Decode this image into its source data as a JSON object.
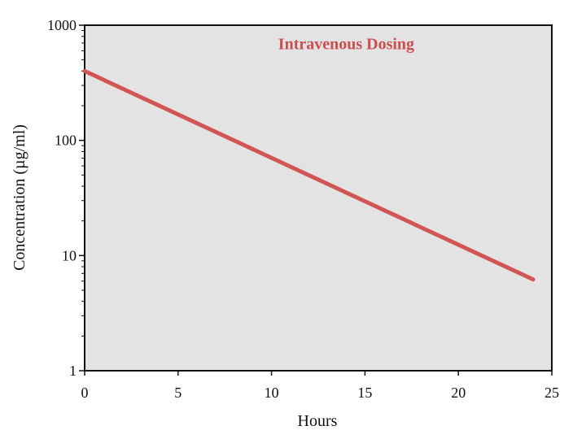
{
  "chart_data": {
    "type": "line",
    "xlabel": "Hours",
    "ylabel": "Concentration (µg/ml)",
    "xlim": [
      0,
      25
    ],
    "ylim": [
      1,
      1000
    ],
    "yscale": "log",
    "xticks": [
      0,
      5,
      10,
      15,
      20,
      25
    ],
    "yticks": [
      1,
      10,
      100,
      1000
    ],
    "xtick_labels": [
      "0",
      "5",
      "10",
      "15",
      "20",
      "25"
    ],
    "ytick_labels": [
      "1",
      "10",
      "100",
      "1000"
    ],
    "grid": false,
    "legend": "none",
    "annotations": [
      {
        "text": "Intravenous Dosing",
        "x": 14,
        "y": 620
      }
    ],
    "series": [
      {
        "x": [
          0,
          24
        ],
        "y": [
          400,
          6.2
        ]
      }
    ]
  },
  "colors": {
    "plot_background": "#e3e3e3",
    "line": "#d25555",
    "annotation": "#cc4f4f",
    "axis": "#111111"
  }
}
